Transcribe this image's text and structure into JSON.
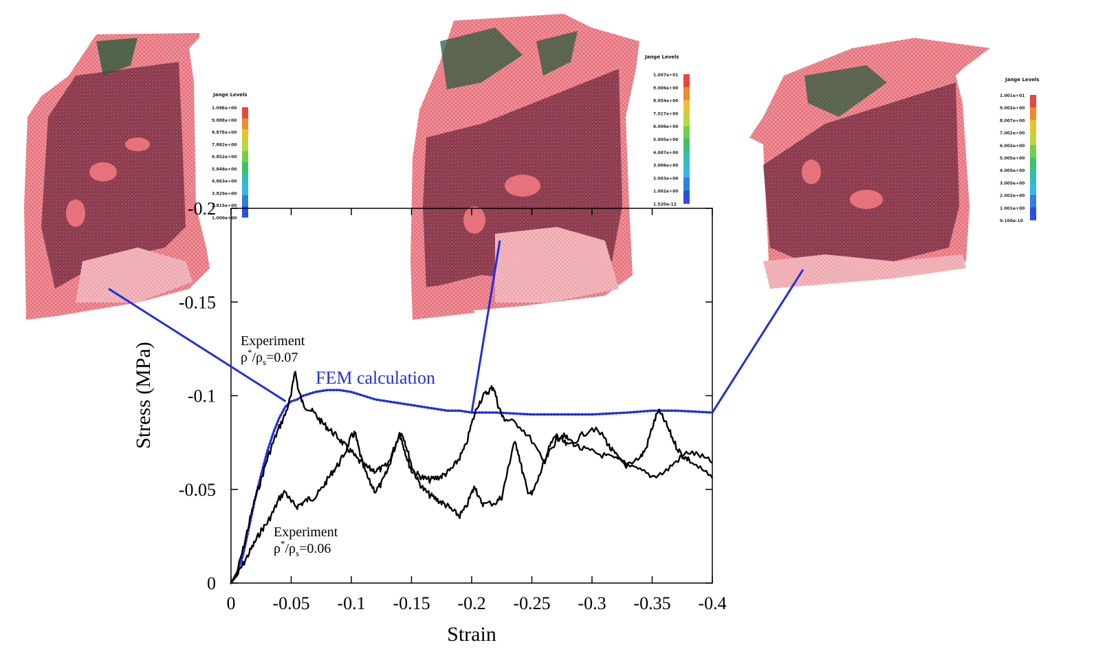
{
  "chart_data": {
    "type": "line",
    "xlabel": "Strain",
    "ylabel": "Stress (MPa)",
    "xlim": [
      0,
      -0.4
    ],
    "ylim": [
      0,
      -0.2
    ],
    "x_ticks": [
      "0",
      "-0.05",
      "-0.1",
      "-0.15",
      "-0.2",
      "-0.25",
      "-0.3",
      "-0.35",
      "-0.4"
    ],
    "y_ticks": [
      "0",
      "-0.05",
      "-0.1",
      "-0.15",
      "-0.2"
    ],
    "grid": false,
    "series": [
      {
        "name": "FEM calculation",
        "style": "dotted",
        "color": "#1f2ee0",
        "points": [
          [
            0,
            0
          ],
          [
            -0.005,
            -0.005
          ],
          [
            -0.01,
            -0.015
          ],
          [
            -0.015,
            -0.03
          ],
          [
            -0.02,
            -0.045
          ],
          [
            -0.025,
            -0.058
          ],
          [
            -0.03,
            -0.07
          ],
          [
            -0.035,
            -0.08
          ],
          [
            -0.04,
            -0.088
          ],
          [
            -0.045,
            -0.094
          ],
          [
            -0.05,
            -0.097
          ],
          [
            -0.055,
            -0.098
          ],
          [
            -0.06,
            -0.1
          ],
          [
            -0.07,
            -0.102
          ],
          [
            -0.08,
            -0.103
          ],
          [
            -0.09,
            -0.103
          ],
          [
            -0.1,
            -0.102
          ],
          [
            -0.11,
            -0.1
          ],
          [
            -0.12,
            -0.098
          ],
          [
            -0.13,
            -0.097
          ],
          [
            -0.14,
            -0.096
          ],
          [
            -0.15,
            -0.095
          ],
          [
            -0.16,
            -0.094
          ],
          [
            -0.17,
            -0.093
          ],
          [
            -0.18,
            -0.092
          ],
          [
            -0.19,
            -0.092
          ],
          [
            -0.2,
            -0.091
          ],
          [
            -0.22,
            -0.091
          ],
          [
            -0.25,
            -0.09
          ],
          [
            -0.28,
            -0.09
          ],
          [
            -0.3,
            -0.09
          ],
          [
            -0.33,
            -0.091
          ],
          [
            -0.35,
            -0.092
          ],
          [
            -0.37,
            -0.092
          ],
          [
            -0.4,
            -0.091
          ]
        ]
      },
      {
        "name": "Experiment ρ*/ρs=0.07",
        "style": "solid",
        "color": "#000000",
        "points": [
          [
            0,
            0
          ],
          [
            -0.005,
            -0.006
          ],
          [
            -0.01,
            -0.018
          ],
          [
            -0.015,
            -0.032
          ],
          [
            -0.02,
            -0.045
          ],
          [
            -0.025,
            -0.055
          ],
          [
            -0.03,
            -0.066
          ],
          [
            -0.035,
            -0.075
          ],
          [
            -0.04,
            -0.083
          ],
          [
            -0.045,
            -0.09
          ],
          [
            -0.05,
            -0.1
          ],
          [
            -0.053,
            -0.114
          ],
          [
            -0.056,
            -0.103
          ],
          [
            -0.06,
            -0.095
          ],
          [
            -0.065,
            -0.093
          ],
          [
            -0.07,
            -0.09
          ],
          [
            -0.075,
            -0.086
          ],
          [
            -0.08,
            -0.083
          ],
          [
            -0.085,
            -0.08
          ],
          [
            -0.09,
            -0.077
          ],
          [
            -0.095,
            -0.073
          ],
          [
            -0.1,
            -0.07
          ],
          [
            -0.105,
            -0.066
          ],
          [
            -0.11,
            -0.063
          ],
          [
            -0.115,
            -0.061
          ],
          [
            -0.12,
            -0.06
          ],
          [
            -0.125,
            -0.061
          ],
          [
            -0.13,
            -0.063
          ],
          [
            -0.135,
            -0.071
          ],
          [
            -0.14,
            -0.08
          ],
          [
            -0.143,
            -0.074
          ],
          [
            -0.147,
            -0.065
          ],
          [
            -0.15,
            -0.06
          ],
          [
            -0.155,
            -0.058
          ],
          [
            -0.16,
            -0.056
          ],
          [
            -0.165,
            -0.055
          ],
          [
            -0.17,
            -0.056
          ],
          [
            -0.175,
            -0.057
          ],
          [
            -0.18,
            -0.059
          ],
          [
            -0.185,
            -0.062
          ],
          [
            -0.19,
            -0.067
          ],
          [
            -0.195,
            -0.073
          ],
          [
            -0.2,
            -0.085
          ],
          [
            -0.205,
            -0.095
          ],
          [
            -0.21,
            -0.1
          ],
          [
            -0.215,
            -0.103
          ],
          [
            -0.218,
            -0.105
          ],
          [
            -0.222,
            -0.095
          ],
          [
            -0.226,
            -0.088
          ],
          [
            -0.23,
            -0.087
          ],
          [
            -0.24,
            -0.084
          ],
          [
            -0.25,
            -0.076
          ],
          [
            -0.26,
            -0.064
          ],
          [
            -0.265,
            -0.073
          ],
          [
            -0.27,
            -0.079
          ],
          [
            -0.275,
            -0.076
          ],
          [
            -0.28,
            -0.073
          ],
          [
            -0.29,
            -0.078
          ],
          [
            -0.3,
            -0.083
          ],
          [
            -0.31,
            -0.078
          ],
          [
            -0.315,
            -0.072
          ],
          [
            -0.32,
            -0.068
          ],
          [
            -0.33,
            -0.062
          ],
          [
            -0.34,
            -0.06
          ],
          [
            -0.35,
            -0.057
          ],
          [
            -0.36,
            -0.059
          ],
          [
            -0.37,
            -0.065
          ],
          [
            -0.38,
            -0.07
          ],
          [
            -0.39,
            -0.068
          ],
          [
            -0.4,
            -0.064
          ]
        ]
      },
      {
        "name": "Experiment ρ*/ρs=0.06",
        "style": "solid",
        "color": "#000000",
        "points": [
          [
            0,
            0
          ],
          [
            -0.005,
            -0.004
          ],
          [
            -0.01,
            -0.01
          ],
          [
            -0.015,
            -0.016
          ],
          [
            -0.02,
            -0.022
          ],
          [
            -0.025,
            -0.028
          ],
          [
            -0.03,
            -0.032
          ],
          [
            -0.035,
            -0.038
          ],
          [
            -0.04,
            -0.045
          ],
          [
            -0.045,
            -0.049
          ],
          [
            -0.05,
            -0.043
          ],
          [
            -0.055,
            -0.041
          ],
          [
            -0.06,
            -0.043
          ],
          [
            -0.065,
            -0.045
          ],
          [
            -0.07,
            -0.046
          ],
          [
            -0.075,
            -0.05
          ],
          [
            -0.08,
            -0.055
          ],
          [
            -0.085,
            -0.06
          ],
          [
            -0.09,
            -0.064
          ],
          [
            -0.095,
            -0.07
          ],
          [
            -0.1,
            -0.078
          ],
          [
            -0.103,
            -0.08
          ],
          [
            -0.106,
            -0.072
          ],
          [
            -0.11,
            -0.062
          ],
          [
            -0.115,
            -0.054
          ],
          [
            -0.12,
            -0.049
          ],
          [
            -0.125,
            -0.053
          ],
          [
            -0.13,
            -0.06
          ],
          [
            -0.135,
            -0.07
          ],
          [
            -0.14,
            -0.08
          ],
          [
            -0.143,
            -0.079
          ],
          [
            -0.147,
            -0.07
          ],
          [
            -0.15,
            -0.063
          ],
          [
            -0.155,
            -0.055
          ],
          [
            -0.16,
            -0.05
          ],
          [
            -0.165,
            -0.047
          ],
          [
            -0.17,
            -0.045
          ],
          [
            -0.175,
            -0.043
          ],
          [
            -0.18,
            -0.041
          ],
          [
            -0.185,
            -0.038
          ],
          [
            -0.19,
            -0.036
          ],
          [
            -0.195,
            -0.04
          ],
          [
            -0.2,
            -0.048
          ],
          [
            -0.203,
            -0.052
          ],
          [
            -0.206,
            -0.045
          ],
          [
            -0.21,
            -0.042
          ],
          [
            -0.22,
            -0.043
          ],
          [
            -0.225,
            -0.046
          ],
          [
            -0.23,
            -0.06
          ],
          [
            -0.235,
            -0.075
          ],
          [
            -0.238,
            -0.072
          ],
          [
            -0.242,
            -0.06
          ],
          [
            -0.246,
            -0.05
          ],
          [
            -0.25,
            -0.047
          ],
          [
            -0.255,
            -0.055
          ],
          [
            -0.26,
            -0.064
          ],
          [
            -0.265,
            -0.07
          ],
          [
            -0.27,
            -0.076
          ],
          [
            -0.275,
            -0.079
          ],
          [
            -0.28,
            -0.077
          ],
          [
            -0.29,
            -0.072
          ],
          [
            -0.3,
            -0.07
          ],
          [
            -0.31,
            -0.068
          ],
          [
            -0.32,
            -0.066
          ],
          [
            -0.33,
            -0.064
          ],
          [
            -0.34,
            -0.067
          ],
          [
            -0.345,
            -0.072
          ],
          [
            -0.35,
            -0.083
          ],
          [
            -0.355,
            -0.092
          ],
          [
            -0.36,
            -0.087
          ],
          [
            -0.365,
            -0.08
          ],
          [
            -0.37,
            -0.073
          ],
          [
            -0.375,
            -0.068
          ],
          [
            -0.38,
            -0.066
          ],
          [
            -0.39,
            -0.061
          ],
          [
            -0.4,
            -0.056
          ]
        ]
      }
    ],
    "annotations": {
      "fem": "FEM calculation",
      "exp07_line1": "Experiment",
      "exp07_rho": "ρ",
      "exp07_star": "*",
      "exp07_slash": "/ρ",
      "exp07_sub": "s",
      "exp07_value": "=0.07",
      "exp06_line1": "Experiment",
      "exp06_rho": "ρ",
      "exp06_star": "*",
      "exp06_slash": "/ρ",
      "exp06_sub": "s",
      "exp06_value": "=0.06"
    },
    "callout_strains": [
      -0.05,
      -0.2,
      -0.4
    ],
    "callout_color": "#1f2ee0",
    "insets": [
      {
        "legend_title": "Jange Levels",
        "levels": [
          "1.09Ee+00",
          "9.88Ee+00",
          "8.87Ee+00",
          "7.882e+00",
          "6.852e+00",
          "5.848e+00",
          "4.863e+00",
          "3.829e+00",
          "2.815e+00",
          "1.000e+00"
        ]
      },
      {
        "legend_title": "Jange Levels",
        "levels": [
          "1.007e+01",
          "9.006e+00",
          "8.054e+00",
          "7.017e+00",
          "6.006e+00",
          "5.005e+00",
          "4.007e+00",
          "3.006e+00",
          "2.003e+00",
          "1.002e+00",
          "1.520e-12"
        ]
      },
      {
        "legend_title": "Jange Levels",
        "levels": [
          "1.001e+01",
          "9.002e+00",
          "8.007e+00",
          "7.002e+00",
          "6.002e+00",
          "5.005e+00",
          "4.005e+00",
          "3.005e+00",
          "2.002e+00",
          "1.001e+00",
          "9.100e-10"
        ]
      }
    ],
    "colorbar_colors": [
      "#e8453c",
      "#f08a2b",
      "#e6c430",
      "#bcd640",
      "#6fcf4a",
      "#3fbf6a",
      "#2fc0b0",
      "#35b6e6",
      "#2e7fe0",
      "#2a4ee0"
    ]
  }
}
